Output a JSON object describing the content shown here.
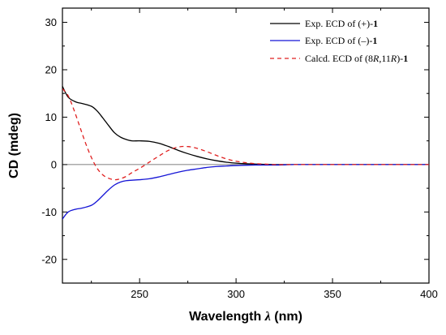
{
  "chart_data": {
    "type": "line",
    "xlabel": "Wavelength",
    "xlabel_symbol": "λ",
    "xlabel_unit": "(nm)",
    "ylabel": "CD (mdeg)",
    "xlim": [
      210,
      400
    ],
    "ylim": [
      -25,
      33
    ],
    "xticks": [
      250,
      300,
      350,
      400
    ],
    "yticks": [
      -20,
      -10,
      0,
      10,
      20,
      30
    ],
    "zero_line": true,
    "legend_position": "top-right",
    "series": [
      {
        "name": "Exp. ECD of (+)-1",
        "legend_parts": [
          {
            "text": "Exp. ECD of (+)-"
          },
          {
            "text": "1",
            "bold": true
          }
        ],
        "color": "#000000",
        "dash": "solid",
        "x": [
          210,
          213,
          217,
          220,
          225,
          228,
          231,
          234,
          237,
          240,
          243,
          246,
          250,
          255,
          260,
          265,
          270,
          275,
          280,
          285,
          290,
          295,
          300,
          310,
          320,
          330,
          340,
          350,
          360,
          370,
          380,
          390,
          400
        ],
        "y": [
          16.5,
          14.2,
          13.2,
          12.9,
          12.3,
          11.3,
          9.8,
          8.2,
          6.7,
          5.8,
          5.3,
          5.0,
          5.0,
          4.9,
          4.5,
          3.8,
          3.0,
          2.3,
          1.7,
          1.2,
          0.8,
          0.5,
          0.3,
          0.1,
          0.0,
          0.0,
          0.0,
          0.0,
          0.0,
          0.0,
          0.0,
          0.0,
          0.0
        ]
      },
      {
        "name": "Exp. ECD of (–)-1",
        "legend_parts": [
          {
            "text": "Exp. ECD of (–)-"
          },
          {
            "text": "1",
            "bold": true
          }
        ],
        "color": "#1515d6",
        "dash": "solid",
        "x": [
          210,
          213,
          217,
          220,
          225,
          228,
          231,
          234,
          237,
          240,
          243,
          246,
          250,
          255,
          260,
          265,
          270,
          275,
          280,
          285,
          290,
          295,
          300,
          310,
          320,
          330,
          340,
          350,
          360,
          370,
          380,
          390,
          400
        ],
        "y": [
          -11.5,
          -10.0,
          -9.4,
          -9.2,
          -8.6,
          -7.7,
          -6.5,
          -5.3,
          -4.3,
          -3.7,
          -3.4,
          -3.3,
          -3.2,
          -3.0,
          -2.6,
          -2.1,
          -1.6,
          -1.2,
          -0.9,
          -0.6,
          -0.4,
          -0.3,
          -0.2,
          -0.1,
          -0.1,
          0.0,
          0.0,
          0.0,
          0.0,
          0.0,
          0.0,
          0.0,
          0.0
        ]
      },
      {
        "name": "Calcd. ECD of (8R,11R)-1",
        "legend_parts": [
          {
            "text": "Calcd. ECD of (8"
          },
          {
            "text": "R",
            "italic": true
          },
          {
            "text": ",11"
          },
          {
            "text": "R",
            "italic": true
          },
          {
            "text": ")-"
          },
          {
            "text": "1",
            "bold": true
          }
        ],
        "color": "#e02020",
        "dash": "dashed",
        "x": [
          210,
          213,
          216,
          219,
          222,
          225,
          228,
          231,
          234,
          237,
          240,
          243,
          246,
          250,
          255,
          260,
          265,
          270,
          275,
          280,
          285,
          290,
          295,
          300,
          305,
          310,
          315,
          320,
          325,
          330,
          340,
          350,
          360,
          370,
          380,
          390,
          400
        ],
        "y": [
          16.0,
          14.5,
          11.5,
          8.0,
          4.5,
          1.5,
          -0.8,
          -2.2,
          -2.9,
          -3.2,
          -3.0,
          -2.5,
          -1.7,
          -0.8,
          0.5,
          1.8,
          3.0,
          3.7,
          3.8,
          3.4,
          2.7,
          1.9,
          1.2,
          0.7,
          0.4,
          0.2,
          0.1,
          0.0,
          0.0,
          0.0,
          0.0,
          0.0,
          0.0,
          0.0,
          0.0,
          0.0,
          0.0
        ]
      }
    ]
  }
}
